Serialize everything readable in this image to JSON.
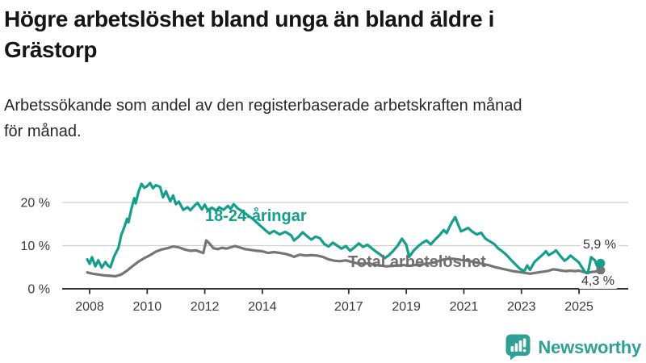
{
  "header": {
    "title_line1": "Högre arbetslöshet bland unga än bland äldre i",
    "title_line2": "Grästorp",
    "subtitle_line1": "Arbetssökande som andel av den registerbaserade arbetskraften månad",
    "subtitle_line2": "för månad."
  },
  "chart_data": {
    "type": "line",
    "title": "Högre arbetslöshet bland unga än bland äldre i Grästorp",
    "subtitle": "Arbetssökande som andel av den registerbaserade arbetskraften månad för månad.",
    "unit": "%",
    "grid": "horizontal",
    "x_axis": {
      "ticks": [
        2008,
        2010,
        2012,
        2014,
        2017,
        2019,
        2021,
        2023,
        2025
      ],
      "labels": [
        "2008",
        "2010",
        "2012",
        "2014",
        "2017",
        "2019",
        "2021",
        "2023",
        "2025"
      ],
      "range_years": [
        2007.9,
        2025.8
      ]
    },
    "y_axis": {
      "ticks": [
        0,
        10,
        20
      ],
      "labels": [
        "0 %",
        "10 %",
        "20 %"
      ],
      "ylim": [
        0,
        26
      ]
    },
    "colors": {
      "youth": "#149e8c",
      "total": "#757575",
      "grid": "#cfcfcf",
      "axis": "#333333"
    },
    "series": [
      {
        "name": "18-24-åringar",
        "color": "#149e8c",
        "end_label": "5,9 %",
        "end_value": 5.9,
        "points": [
          [
            2007.92,
            6.8
          ],
          [
            2008.0,
            5.8
          ],
          [
            2008.08,
            7.3
          ],
          [
            2008.2,
            5.2
          ],
          [
            2008.3,
            6.6
          ],
          [
            2008.42,
            4.9
          ],
          [
            2008.55,
            6.2
          ],
          [
            2008.63,
            5.4
          ],
          [
            2008.72,
            5.0
          ],
          [
            2008.85,
            7.5
          ],
          [
            2009.0,
            9.5
          ],
          [
            2009.1,
            12.5
          ],
          [
            2009.2,
            14.2
          ],
          [
            2009.3,
            16.2
          ],
          [
            2009.35,
            15.4
          ],
          [
            2009.45,
            18.5
          ],
          [
            2009.55,
            21.0
          ],
          [
            2009.6,
            19.8
          ],
          [
            2009.7,
            22.5
          ],
          [
            2009.8,
            24.3
          ],
          [
            2009.9,
            23.4
          ],
          [
            2010.0,
            23.8
          ],
          [
            2010.1,
            24.5
          ],
          [
            2010.2,
            23.3
          ],
          [
            2010.3,
            24.0
          ],
          [
            2010.45,
            23.6
          ],
          [
            2010.55,
            21.2
          ],
          [
            2010.65,
            22.6
          ],
          [
            2010.8,
            20.3
          ],
          [
            2010.9,
            21.6
          ],
          [
            2011.0,
            19.6
          ],
          [
            2011.1,
            20.2
          ],
          [
            2011.25,
            18.3
          ],
          [
            2011.4,
            18.9
          ],
          [
            2011.5,
            18.2
          ],
          [
            2011.65,
            19.3
          ],
          [
            2011.75,
            19.9
          ],
          [
            2011.9,
            18.4
          ],
          [
            2012.0,
            19.5
          ],
          [
            2012.1,
            18.2
          ],
          [
            2012.25,
            18.8
          ],
          [
            2012.4,
            18.1
          ],
          [
            2012.5,
            18.9
          ],
          [
            2012.65,
            18.3
          ],
          [
            2012.8,
            19.2
          ],
          [
            2012.9,
            18.5
          ],
          [
            2013.0,
            19.6
          ],
          [
            2013.15,
            18.6
          ],
          [
            2013.3,
            18.0
          ],
          [
            2013.5,
            17.0
          ],
          [
            2013.7,
            16.0
          ],
          [
            2013.9,
            14.8
          ],
          [
            2014.1,
            13.6
          ],
          [
            2014.25,
            12.8
          ],
          [
            2014.4,
            13.4
          ],
          [
            2014.6,
            12.6
          ],
          [
            2014.8,
            13.2
          ],
          [
            2015.0,
            12.4
          ],
          [
            2015.1,
            11.2
          ],
          [
            2015.25,
            12.0
          ],
          [
            2015.4,
            13.1
          ],
          [
            2015.55,
            12.2
          ],
          [
            2015.7,
            11.4
          ],
          [
            2015.85,
            12.1
          ],
          [
            2016.0,
            11.7
          ],
          [
            2016.15,
            10.4
          ],
          [
            2016.3,
            9.8
          ],
          [
            2016.45,
            10.7
          ],
          [
            2016.6,
            10.0
          ],
          [
            2016.75,
            9.3
          ],
          [
            2016.9,
            9.9
          ],
          [
            2017.05,
            8.8
          ],
          [
            2017.2,
            9.6
          ],
          [
            2017.35,
            10.5
          ],
          [
            2017.5,
            9.7
          ],
          [
            2017.65,
            10.2
          ],
          [
            2017.8,
            9.4
          ],
          [
            2017.95,
            8.6
          ],
          [
            2018.1,
            7.9
          ],
          [
            2018.25,
            7.1
          ],
          [
            2018.4,
            7.8
          ],
          [
            2018.55,
            8.8
          ],
          [
            2018.7,
            10.0
          ],
          [
            2018.85,
            11.6
          ],
          [
            2019.0,
            10.2
          ],
          [
            2019.1,
            7.4
          ],
          [
            2019.25,
            8.8
          ],
          [
            2019.4,
            9.8
          ],
          [
            2019.55,
            10.6
          ],
          [
            2019.7,
            11.2
          ],
          [
            2019.85,
            10.3
          ],
          [
            2020.0,
            11.4
          ],
          [
            2020.15,
            12.4
          ],
          [
            2020.3,
            13.6
          ],
          [
            2020.4,
            12.9
          ],
          [
            2020.5,
            14.3
          ],
          [
            2020.6,
            15.6
          ],
          [
            2020.7,
            16.6
          ],
          [
            2020.8,
            14.9
          ],
          [
            2020.9,
            13.3
          ],
          [
            2021.0,
            13.6
          ],
          [
            2021.15,
            14.1
          ],
          [
            2021.3,
            13.2
          ],
          [
            2021.45,
            12.6
          ],
          [
            2021.6,
            13.0
          ],
          [
            2021.75,
            11.6
          ],
          [
            2021.9,
            11.0
          ],
          [
            2022.05,
            10.4
          ],
          [
            2022.2,
            9.3
          ],
          [
            2022.35,
            8.6
          ],
          [
            2022.5,
            7.7
          ],
          [
            2022.65,
            6.6
          ],
          [
            2022.8,
            5.6
          ],
          [
            2022.95,
            4.6
          ],
          [
            2023.1,
            4.1
          ],
          [
            2023.2,
            5.4
          ],
          [
            2023.3,
            4.4
          ],
          [
            2023.45,
            6.2
          ],
          [
            2023.6,
            7.1
          ],
          [
            2023.75,
            8.0
          ],
          [
            2023.85,
            8.7
          ],
          [
            2023.95,
            7.8
          ],
          [
            2024.1,
            8.4
          ],
          [
            2024.2,
            8.9
          ],
          [
            2024.35,
            7.6
          ],
          [
            2024.5,
            6.5
          ],
          [
            2024.6,
            7.0
          ],
          [
            2024.7,
            7.7
          ],
          [
            2024.85,
            6.9
          ],
          [
            2025.0,
            6.1
          ],
          [
            2025.1,
            5.0
          ],
          [
            2025.2,
            4.0
          ],
          [
            2025.3,
            3.4
          ],
          [
            2025.42,
            7.3
          ],
          [
            2025.55,
            6.6
          ],
          [
            2025.65,
            4.9
          ],
          [
            2025.75,
            5.9
          ]
        ]
      },
      {
        "name": "Total arbetslöshet",
        "color": "#757575",
        "end_label": "4,3 %",
        "end_value": 4.3,
        "points": [
          [
            2007.92,
            3.8
          ],
          [
            2008.1,
            3.5
          ],
          [
            2008.3,
            3.3
          ],
          [
            2008.5,
            3.1
          ],
          [
            2008.7,
            3.0
          ],
          [
            2008.9,
            2.9
          ],
          [
            2009.1,
            3.3
          ],
          [
            2009.3,
            4.2
          ],
          [
            2009.5,
            5.3
          ],
          [
            2009.7,
            6.3
          ],
          [
            2009.9,
            7.1
          ],
          [
            2010.1,
            7.8
          ],
          [
            2010.3,
            8.6
          ],
          [
            2010.5,
            9.1
          ],
          [
            2010.7,
            9.4
          ],
          [
            2010.9,
            9.8
          ],
          [
            2011.1,
            9.6
          ],
          [
            2011.3,
            9.1
          ],
          [
            2011.5,
            8.8
          ],
          [
            2011.7,
            8.9
          ],
          [
            2011.85,
            8.5
          ],
          [
            2011.95,
            8.3
          ],
          [
            2012.05,
            11.2
          ],
          [
            2012.15,
            10.6
          ],
          [
            2012.3,
            9.4
          ],
          [
            2012.45,
            9.2
          ],
          [
            2012.6,
            9.5
          ],
          [
            2012.75,
            9.3
          ],
          [
            2012.9,
            9.6
          ],
          [
            2013.05,
            9.9
          ],
          [
            2013.2,
            9.6
          ],
          [
            2013.4,
            9.2
          ],
          [
            2013.6,
            9.0
          ],
          [
            2013.8,
            8.8
          ],
          [
            2014.0,
            8.7
          ],
          [
            2014.2,
            8.3
          ],
          [
            2014.4,
            8.5
          ],
          [
            2014.6,
            8.3
          ],
          [
            2014.8,
            8.1
          ],
          [
            2015.0,
            7.7
          ],
          [
            2015.1,
            7.4
          ],
          [
            2015.3,
            7.9
          ],
          [
            2015.5,
            7.7
          ],
          [
            2015.7,
            7.8
          ],
          [
            2015.9,
            7.7
          ],
          [
            2016.1,
            7.4
          ],
          [
            2016.3,
            6.8
          ],
          [
            2016.5,
            6.5
          ],
          [
            2016.7,
            6.4
          ],
          [
            2016.9,
            6.6
          ],
          [
            2017.1,
            6.2
          ],
          [
            2017.3,
            5.9
          ],
          [
            2017.5,
            5.8
          ],
          [
            2017.7,
            5.9
          ],
          [
            2017.9,
            5.6
          ],
          [
            2018.1,
            5.4
          ],
          [
            2018.3,
            5.2
          ],
          [
            2018.5,
            5.3
          ],
          [
            2018.7,
            5.4
          ],
          [
            2018.9,
            5.5
          ],
          [
            2019.1,
            5.3
          ],
          [
            2019.3,
            5.5
          ],
          [
            2019.5,
            5.6
          ],
          [
            2019.7,
            5.8
          ],
          [
            2019.9,
            6.0
          ],
          [
            2020.1,
            6.4
          ],
          [
            2020.3,
            6.8
          ],
          [
            2020.5,
            7.0
          ],
          [
            2020.7,
            6.9
          ],
          [
            2020.9,
            6.7
          ],
          [
            2021.1,
            6.5
          ],
          [
            2021.3,
            6.3
          ],
          [
            2021.5,
            6.0
          ],
          [
            2021.7,
            5.7
          ],
          [
            2021.9,
            5.4
          ],
          [
            2022.1,
            5.0
          ],
          [
            2022.3,
            4.7
          ],
          [
            2022.5,
            4.4
          ],
          [
            2022.7,
            4.1
          ],
          [
            2022.9,
            3.9
          ],
          [
            2023.1,
            3.7
          ],
          [
            2023.3,
            3.5
          ],
          [
            2023.5,
            3.7
          ],
          [
            2023.7,
            3.9
          ],
          [
            2023.9,
            4.1
          ],
          [
            2024.1,
            4.5
          ],
          [
            2024.25,
            4.4
          ],
          [
            2024.4,
            4.2
          ],
          [
            2024.55,
            4.1
          ],
          [
            2024.7,
            4.2
          ],
          [
            2024.85,
            4.1
          ],
          [
            2025.0,
            4.2
          ],
          [
            2025.15,
            3.9
          ],
          [
            2025.3,
            3.7
          ],
          [
            2025.45,
            3.9
          ],
          [
            2025.6,
            4.0
          ],
          [
            2025.75,
            4.3
          ]
        ]
      }
    ]
  },
  "logo": {
    "text": "Newsworthy",
    "color": "#2fa096",
    "icon": "bar-chart-speech-bubble-icon"
  }
}
